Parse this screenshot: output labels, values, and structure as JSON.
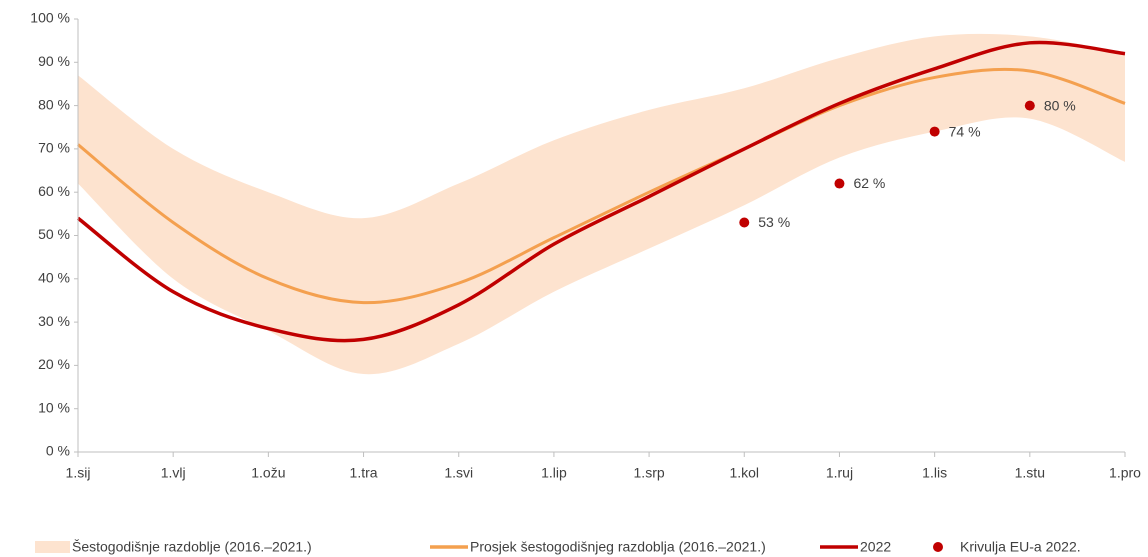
{
  "chart_data": {
    "type": "line",
    "categories": [
      "1.sij",
      "1.vlj",
      "1.ožu",
      "1.tra",
      "1.svi",
      "1.lip",
      "1.srp",
      "1.kol",
      "1.ruj",
      "1.lis",
      "1.stu",
      "1.pro"
    ],
    "ylim": [
      0,
      100
    ],
    "yticks": [
      {
        "value": 0,
        "label": "0 %"
      },
      {
        "value": 10,
        "label": "10 %"
      },
      {
        "value": 20,
        "label": "20 %"
      },
      {
        "value": 30,
        "label": "30 %"
      },
      {
        "value": 40,
        "label": "40 %"
      },
      {
        "value": 50,
        "label": "50 %"
      },
      {
        "value": 60,
        "label": "60 %"
      },
      {
        "value": 70,
        "label": "70 %"
      },
      {
        "value": 80,
        "label": "80 %"
      },
      {
        "value": 90,
        "label": "90 %"
      },
      {
        "value": 100,
        "label": "100 %"
      }
    ],
    "legend": "bottom",
    "series": [
      {
        "name": "Šestogodišnje razdoblje (2016.–2021.)",
        "kind": "range",
        "color": "#fde3cf",
        "low": [
          62,
          40,
          28,
          18,
          25,
          37,
          47,
          57,
          68,
          74,
          77,
          67
        ],
        "high": [
          87,
          70,
          60,
          54,
          62,
          72,
          79,
          84,
          91,
          96,
          96,
          92
        ]
      },
      {
        "name": "Prosjek šestogodišnjeg razdoblja (2016.–2021.)",
        "kind": "line",
        "color": "#f4a04f",
        "values": [
          71,
          53,
          40,
          34.5,
          39,
          49.5,
          60,
          70,
          80,
          86.5,
          88,
          80.5
        ]
      },
      {
        "name": "2022",
        "kind": "line",
        "color": "#c00000",
        "values": [
          54,
          37,
          28.5,
          26,
          34,
          48,
          59,
          70,
          80.5,
          88.5,
          94.5,
          92
        ]
      },
      {
        "name": "Krivulja EU-a 2022.",
        "kind": "points",
        "color": "#c00000",
        "values": [
          null,
          null,
          null,
          null,
          null,
          null,
          null,
          53,
          62,
          74,
          80,
          null
        ],
        "value_labels": [
          null,
          null,
          null,
          null,
          null,
          null,
          null,
          "53 %",
          "62 %",
          "74 %",
          "80 %",
          null
        ]
      }
    ]
  }
}
